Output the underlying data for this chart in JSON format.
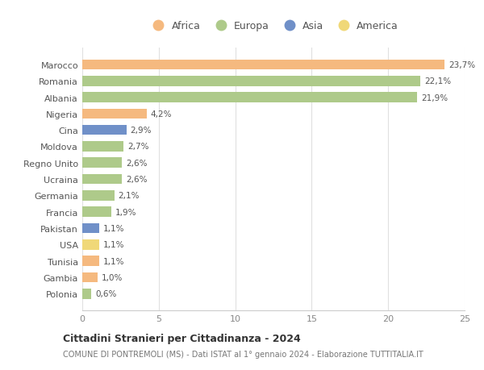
{
  "countries": [
    "Marocco",
    "Romania",
    "Albania",
    "Nigeria",
    "Cina",
    "Moldova",
    "Regno Unito",
    "Ucraina",
    "Germania",
    "Francia",
    "Pakistan",
    "USA",
    "Tunisia",
    "Gambia",
    "Polonia"
  ],
  "values": [
    23.7,
    22.1,
    21.9,
    4.2,
    2.9,
    2.7,
    2.6,
    2.6,
    2.1,
    1.9,
    1.1,
    1.1,
    1.1,
    1.0,
    0.6
  ],
  "labels": [
    "23,7%",
    "22,1%",
    "21,9%",
    "4,2%",
    "2,9%",
    "2,7%",
    "2,6%",
    "2,6%",
    "2,1%",
    "1,9%",
    "1,1%",
    "1,1%",
    "1,1%",
    "1,0%",
    "0,6%"
  ],
  "continents": [
    "Africa",
    "Europa",
    "Europa",
    "Africa",
    "Asia",
    "Europa",
    "Europa",
    "Europa",
    "Europa",
    "Europa",
    "Asia",
    "America",
    "Africa",
    "Africa",
    "Europa"
  ],
  "colors": {
    "Africa": "#F5B97F",
    "Europa": "#AECA8A",
    "Asia": "#7090C8",
    "America": "#F0D878"
  },
  "xlim": [
    0,
    25
  ],
  "xticks": [
    0,
    5,
    10,
    15,
    20,
    25
  ],
  "title": "Cittadini Stranieri per Cittadinanza - 2024",
  "subtitle": "COMUNE DI PONTREMOLI (MS) - Dati ISTAT al 1° gennaio 2024 - Elaborazione TUTTITALIA.IT",
  "background_color": "#ffffff",
  "grid_color": "#e0e0e0",
  "bar_height": 0.62,
  "legend_order": [
    "Africa",
    "Europa",
    "Asia",
    "America"
  ]
}
